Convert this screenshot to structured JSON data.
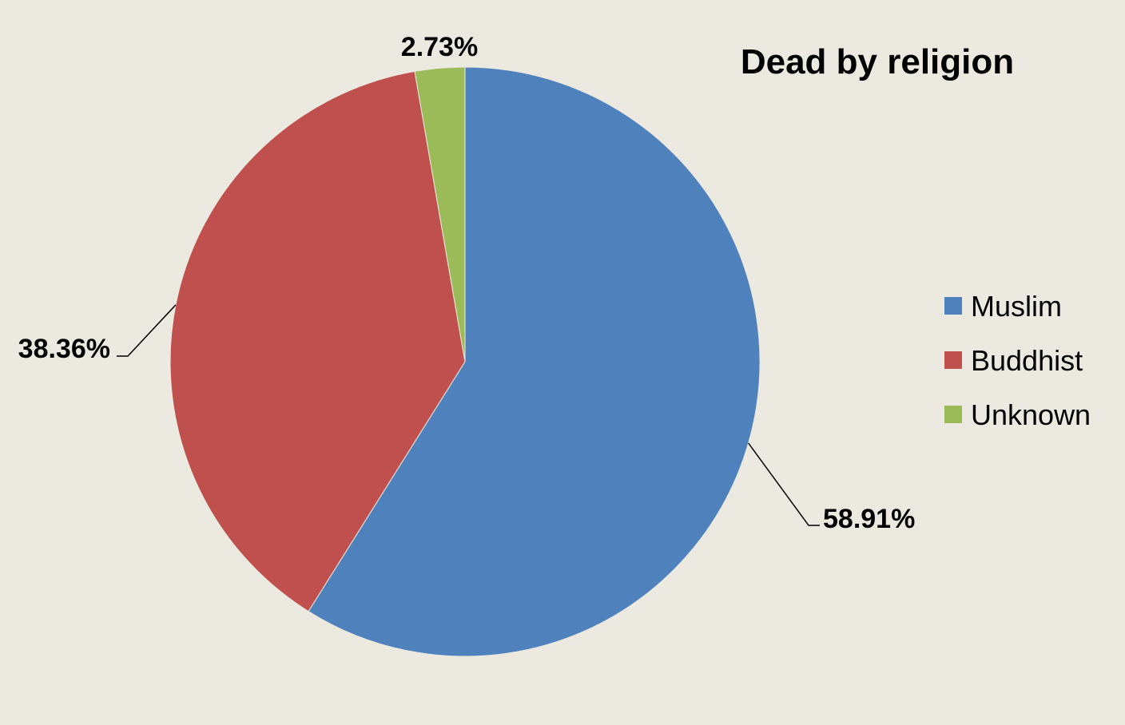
{
  "chart_data": {
    "type": "pie",
    "title": "Dead by religion",
    "categories": [
      "Muslim",
      "Buddhist",
      "Unknown"
    ],
    "values": [
      58.91,
      38.36,
      2.73
    ],
    "labels": [
      "58.91%",
      "38.36%",
      "2.73%"
    ],
    "colors": [
      "#4F81BD",
      "#C0504D",
      "#9BBB59"
    ],
    "start_angle_deg": 0,
    "direction": "clockwise",
    "legend_position": "right",
    "background": "#ECEAE0"
  }
}
